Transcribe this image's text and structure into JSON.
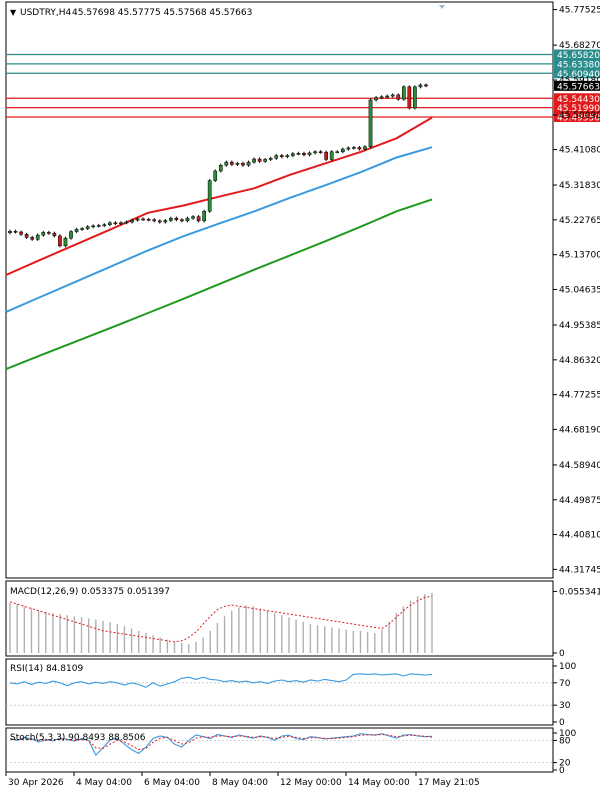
{
  "header": {
    "arrow": "▼",
    "symbol_tf": "USDTRY,H4",
    "ohlc": "45.57698 45.57775 45.57568 45.57663"
  },
  "colors": {
    "bull": "#2e8b3a",
    "bear": "#cc1b1b",
    "ema_fast": "#e31a1c",
    "ema_mid": "#3a9be0",
    "ema_slow": "#1f9a1f",
    "resistance": "#2b8c8c",
    "support": "#e31a1c",
    "current_price_bg": "#000000",
    "macd_hist": "#b0b0b0",
    "macd_signal": "#e31a1c",
    "rsi": "#3a9be0",
    "stoch_main": "#3a9be0",
    "stoch_signal": "#e31a1c",
    "axis": "#000000"
  },
  "chart_data": [
    {
      "type": "candlestick",
      "title": "",
      "x_ticks": [
        "30 Apr 2026",
        "4 May 04:00",
        "6 May 04:00",
        "8 May 04:00",
        "12 May 00:00",
        "14 May 00:00",
        "17 May 21:05"
      ],
      "y_ticks": [
        45.77525,
        45.6827,
        45.5918,
        45.5009,
        45.4108,
        45.3183,
        45.22765,
        45.137,
        45.04635,
        44.95385,
        44.8632,
        44.77255,
        44.6819,
        44.5894,
        44.49875,
        44.4081,
        44.31745
      ],
      "y_tick_labels": [
        "45.77525",
        "45.68270",
        "45.59180",
        "45.50090",
        "45.41080",
        "45.31830",
        "45.22765",
        "45.13700",
        "45.04635",
        "44.95385",
        "44.86320",
        "44.77255",
        "44.68190",
        "44.58940",
        "44.49875",
        "44.40810",
        "44.31745"
      ],
      "ylim": [
        44.295,
        45.795
      ],
      "candles_close": [
        45.198,
        45.196,
        45.19,
        45.182,
        45.177,
        45.188,
        45.195,
        45.193,
        45.186,
        45.16,
        45.18,
        45.197,
        45.203,
        45.205,
        45.21,
        45.212,
        45.213,
        45.215,
        45.22,
        45.218,
        45.22,
        45.222,
        45.227,
        45.23,
        45.229,
        45.228,
        45.225,
        45.222,
        45.226,
        45.232,
        45.228,
        45.225,
        45.232,
        45.236,
        45.225,
        45.25,
        45.33,
        45.355,
        45.37,
        45.378,
        45.372,
        45.375,
        45.37,
        45.378,
        45.386,
        45.38,
        45.385,
        45.388,
        45.395,
        45.392,
        45.395,
        45.4,
        45.401,
        45.397,
        45.402,
        45.405,
        45.404,
        45.385,
        45.405,
        45.405,
        45.412,
        45.415,
        45.416,
        45.412,
        45.418,
        45.54,
        45.546,
        45.548,
        45.55,
        45.553,
        45.542,
        45.574,
        45.519,
        45.574,
        45.579,
        45.577
      ],
      "series": [
        {
          "name": "",
          "kind": "ema_fast",
          "values": [
            45.084,
            45.125,
            45.165,
            45.205,
            45.246,
            45.265,
            45.288,
            45.31,
            45.345,
            45.375,
            45.405,
            45.44,
            45.494
          ]
        },
        {
          "name": "",
          "kind": "ema_mid",
          "values": [
            44.988,
            45.028,
            45.068,
            45.108,
            45.148,
            45.185,
            45.218,
            45.25,
            45.285,
            45.318,
            45.352,
            45.39,
            45.417
          ]
        },
        {
          "name": "",
          "kind": "ema_slow",
          "values": [
            44.839,
            44.876,
            44.912,
            44.948,
            44.985,
            45.022,
            45.06,
            45.098,
            45.135,
            45.172,
            45.21,
            45.25,
            45.281
          ]
        }
      ],
      "levels": {
        "resistance": [
          "45.65820",
          "45.63380",
          "45.60940"
        ],
        "support": [
          "45.54430",
          "45.51990",
          "45.49550"
        ],
        "current": "45.57663"
      }
    },
    {
      "type": "bar",
      "title": "MACD(12,26,9) 0.053375 0.051397",
      "y_tick_labels": [
        "0.055341",
        "0"
      ],
      "ylim": [
        0,
        0.062
      ],
      "histogram": [
        0.045,
        0.044,
        0.042,
        0.04,
        0.038,
        0.037,
        0.036,
        0.035,
        0.034,
        0.033,
        0.032,
        0.031,
        0.03,
        0.029,
        0.028,
        0.026,
        0.024,
        0.022,
        0.02,
        0.018,
        0.016,
        0.014,
        0.012,
        0.01,
        0.009,
        0.008,
        0.01,
        0.014,
        0.02,
        0.027,
        0.033,
        0.038,
        0.041,
        0.043,
        0.042,
        0.04,
        0.038,
        0.036,
        0.034,
        0.032,
        0.03,
        0.028,
        0.026,
        0.025,
        0.024,
        0.023,
        0.022,
        0.021,
        0.02,
        0.02,
        0.019,
        0.018,
        0.021,
        0.028,
        0.036,
        0.042,
        0.047,
        0.051,
        0.053,
        0.054
      ],
      "signal": [
        0.046,
        0.044,
        0.042,
        0.04,
        0.038,
        0.036,
        0.034,
        0.032,
        0.03,
        0.028,
        0.026,
        0.024,
        0.022,
        0.02,
        0.019,
        0.018,
        0.017,
        0.016,
        0.015,
        0.014,
        0.013,
        0.012,
        0.011,
        0.01,
        0.011,
        0.014,
        0.019,
        0.026,
        0.033,
        0.039,
        0.042,
        0.043,
        0.042,
        0.041,
        0.04,
        0.039,
        0.038,
        0.037,
        0.036,
        0.035,
        0.034,
        0.033,
        0.032,
        0.031,
        0.03,
        0.029,
        0.028,
        0.027,
        0.026,
        0.025,
        0.024,
        0.023,
        0.022,
        0.026,
        0.032,
        0.038,
        0.043,
        0.047,
        0.05,
        0.051
      ]
    },
    {
      "type": "line",
      "title": "RSI(14) 84.8109",
      "y_tick_labels": [
        "100",
        "70",
        "30",
        "0"
      ],
      "y_ticks": [
        100,
        70,
        30,
        0
      ],
      "ylim": [
        0,
        100
      ],
      "values": [
        70,
        68,
        72,
        67,
        71,
        69,
        73,
        70,
        65,
        70,
        72,
        68,
        71,
        69,
        72,
        70,
        66,
        70,
        67,
        62,
        70,
        64,
        68,
        72,
        78,
        80,
        76,
        80,
        76,
        75,
        72,
        74,
        71,
        73,
        70,
        72,
        69,
        73,
        75,
        72,
        74,
        71,
        75,
        73,
        76,
        74,
        72,
        75,
        85,
        86,
        85,
        86,
        84,
        85,
        86,
        82,
        86,
        85,
        84,
        85
      ]
    },
    {
      "type": "line",
      "title": "Stoch(5,3,3) 90.8493 88.8506",
      "y_tick_labels": [
        "100",
        "80",
        "20",
        "0"
      ],
      "y_ticks": [
        100,
        80,
        20,
        0
      ],
      "ylim": [
        0,
        100
      ],
      "main": [
        85,
        80,
        88,
        84,
        76,
        82,
        79,
        86,
        83,
        78,
        85,
        80,
        40,
        60,
        82,
        86,
        70,
        55,
        45,
        62,
        85,
        92,
        88,
        70,
        62,
        80,
        95,
        90,
        85,
        96,
        92,
        88,
        95,
        90,
        86,
        92,
        88,
        80,
        92,
        94,
        85,
        82,
        90,
        88,
        84,
        86,
        88,
        90,
        92,
        98,
        96,
        94,
        98,
        92,
        86,
        94,
        96,
        92,
        90,
        91
      ],
      "signal": [
        84,
        82,
        84,
        83,
        80,
        81,
        80,
        83,
        82,
        80,
        82,
        80,
        60,
        58,
        70,
        80,
        76,
        66,
        55,
        58,
        75,
        86,
        88,
        80,
        70,
        74,
        86,
        90,
        88,
        92,
        92,
        90,
        92,
        91,
        88,
        90,
        89,
        85,
        88,
        91,
        88,
        85,
        87,
        87,
        85,
        85,
        86,
        88,
        90,
        94,
        95,
        95,
        96,
        94,
        90,
        92,
        94,
        93,
        91,
        89
      ]
    }
  ]
}
